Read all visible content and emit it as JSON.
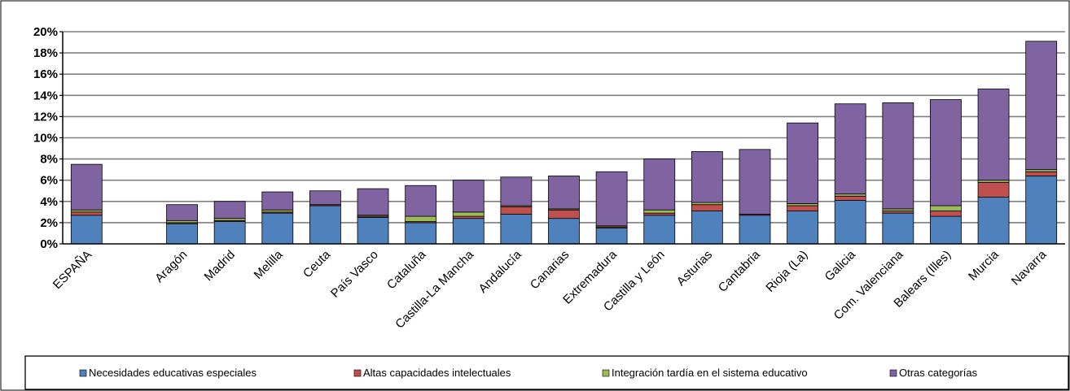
{
  "chart_data": {
    "type": "bar",
    "stacked": true,
    "title": "",
    "xlabel": "",
    "ylabel": "",
    "ylim": [
      0,
      20
    ],
    "y_tick_step": 2,
    "y_unit": "%",
    "grid": true,
    "legend": "bottom",
    "categories": [
      "ESPAÑA",
      "",
      "Aragón",
      "Madrid",
      "Melilla",
      "Ceuta",
      "País Vasco",
      "Cataluña",
      "Castilla-La Mancha",
      "Andalucía",
      "Canarias",
      "Extremadura",
      "Castilla y León",
      "Asturias",
      "Cantabria",
      "Rioja (La)",
      "Galicia",
      "Com. Valenciana",
      "Balears (Illes)",
      "Murcia",
      "Navarra"
    ],
    "series": [
      {
        "name": "Necesidades educativas especiales",
        "color": "#4f81bd",
        "values": [
          2.7,
          null,
          1.9,
          2.1,
          2.9,
          3.6,
          2.5,
          2.0,
          2.4,
          2.8,
          2.4,
          1.5,
          2.7,
          3.1,
          2.7,
          3.1,
          4.1,
          2.9,
          2.6,
          4.4,
          6.4
        ]
      },
      {
        "name": "Altas capacidades intelectuales",
        "color": "#c0504d",
        "values": [
          0.3,
          null,
          0.1,
          0.1,
          0.1,
          0.1,
          0.1,
          0.1,
          0.2,
          0.7,
          0.8,
          0.1,
          0.2,
          0.6,
          0.1,
          0.5,
          0.4,
          0.2,
          0.5,
          1.4,
          0.4
        ]
      },
      {
        "name": "Integración tardía en el sistema educativo",
        "color": "#9bbb59",
        "values": [
          0.2,
          null,
          0.2,
          0.2,
          0.2,
          0.0,
          0.1,
          0.5,
          0.4,
          0.1,
          0.1,
          0.1,
          0.3,
          0.2,
          0.0,
          0.2,
          0.2,
          0.2,
          0.5,
          0.2,
          0.2
        ]
      },
      {
        "name": "Otras categorías",
        "color": "#8064a2",
        "values": [
          4.3,
          null,
          1.5,
          1.6,
          1.7,
          1.3,
          2.5,
          2.9,
          3.0,
          2.7,
          3.1,
          5.1,
          4.8,
          4.8,
          6.1,
          7.6,
          8.5,
          10.0,
          10.0,
          8.6,
          12.1
        ]
      }
    ]
  }
}
